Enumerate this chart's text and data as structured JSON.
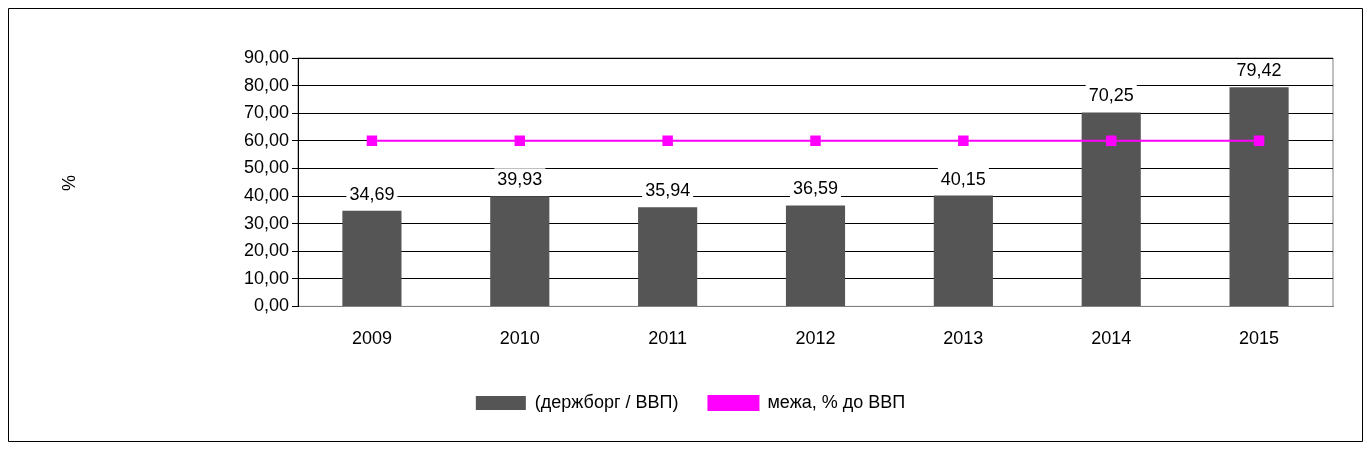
{
  "chart_data": {
    "type": "bar",
    "categories": [
      "2009",
      "2010",
      "2011",
      "2012",
      "2013",
      "2014",
      "2015"
    ],
    "series": [
      {
        "name": "(держборг / ВВП)",
        "color": "#555555",
        "values": [
          34.69,
          39.93,
          35.94,
          36.59,
          40.15,
          70.25,
          79.42
        ],
        "value_labels": [
          "34,69",
          "39,93",
          "35,94",
          "36,59",
          "40,15",
          "70,25",
          "79,42"
        ]
      },
      {
        "name": "межа, % до ВВП",
        "type": "line",
        "color": "#ff00ff",
        "marker": "square",
        "values": [
          60,
          60,
          60,
          60,
          60,
          60,
          60
        ]
      }
    ],
    "ylim": [
      0,
      90
    ],
    "yticks": [
      {
        "value": 0,
        "label": "0,00"
      },
      {
        "value": 10,
        "label": "10,00"
      },
      {
        "value": 20,
        "label": "20,00"
      },
      {
        "value": 30,
        "label": "30,00"
      },
      {
        "value": 40,
        "label": "40,00"
      },
      {
        "value": 50,
        "label": "50,00"
      },
      {
        "value": 60,
        "label": "60,00"
      },
      {
        "value": 70,
        "label": "70,00"
      },
      {
        "value": 80,
        "label": "80,00"
      },
      {
        "value": 90,
        "label": "90,00"
      }
    ],
    "annotations": [
      "%"
    ],
    "grid": "y",
    "legend": "bottom"
  }
}
